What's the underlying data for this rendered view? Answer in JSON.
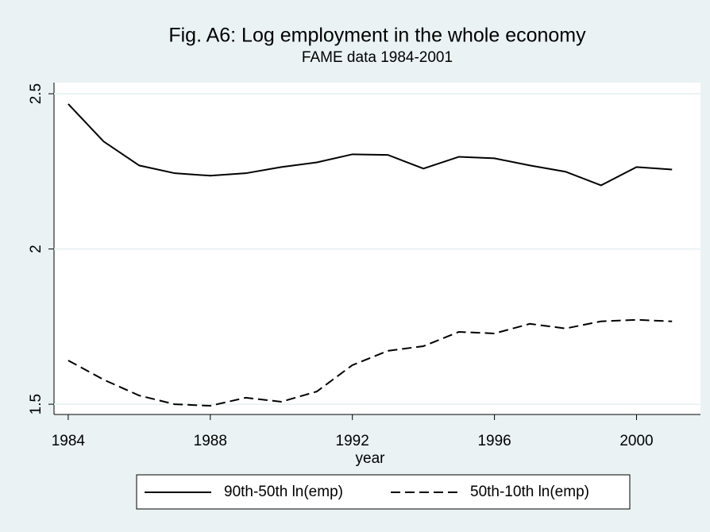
{
  "chart_data": {
    "type": "line",
    "title": "Fig. A6: Log employment in the whole economy",
    "subtitle": "FAME data 1984-2001",
    "x_label": "year",
    "x": [
      1984,
      1985,
      1986,
      1987,
      1988,
      1989,
      1990,
      1991,
      1992,
      1993,
      1994,
      1995,
      1996,
      1997,
      1998,
      1999,
      2000,
      2001
    ],
    "series": [
      {
        "name": "90th-50th ln(emp)",
        "color": "#000000",
        "style": "solid",
        "values": [
          2.467,
          2.346,
          2.269,
          2.244,
          2.236,
          2.244,
          2.264,
          2.279,
          2.305,
          2.303,
          2.259,
          2.297,
          2.292,
          2.269,
          2.249,
          2.205,
          2.264,
          2.256
        ]
      },
      {
        "name": "50th-10th ln(emp)",
        "color": "#000000",
        "style": "dashed",
        "values": [
          1.641,
          1.579,
          1.528,
          1.5,
          1.495,
          1.521,
          1.508,
          1.541,
          1.626,
          1.672,
          1.687,
          1.733,
          1.728,
          1.759,
          1.744,
          1.767,
          1.772,
          1.767
        ]
      }
    ],
    "xlim": [
      1983.6,
      2001.8
    ],
    "xticks": [
      1984,
      1988,
      1992,
      1996,
      2000
    ],
    "ylim": [
      1.467,
      2.536
    ],
    "yticks": [
      1.5,
      2,
      2.5
    ],
    "grid": true,
    "legend": "bottom"
  }
}
